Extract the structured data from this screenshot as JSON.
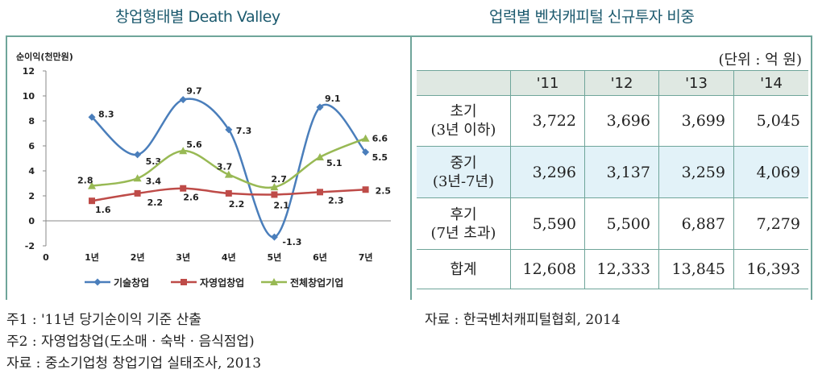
{
  "left_title": "창업형태별 Death Valley",
  "right_title": "업력별 벤처캐피털 신규투자 비중",
  "chart_data": {
    "type": "line",
    "title": "창업형태별 Death Valley",
    "ylabel": "순이익(천만원)",
    "xlabel": "",
    "origin_label": "0",
    "categories": [
      "1년",
      "2년",
      "3년",
      "4년",
      "5년",
      "6년",
      "7년"
    ],
    "ylim": [
      -2,
      12
    ],
    "yticks": [
      -2,
      0,
      2,
      4,
      6,
      8,
      10,
      12
    ],
    "grid": false,
    "legend_position": "bottom",
    "series": [
      {
        "name": "기술창업",
        "color": "#4a7ebb",
        "marker": "diamond",
        "values": [
          8.3,
          5.3,
          9.7,
          7.3,
          -1.3,
          9.1,
          5.5
        ]
      },
      {
        "name": "자영업창업",
        "color": "#be4b48",
        "marker": "square",
        "values": [
          1.6,
          2.2,
          2.6,
          2.2,
          2.1,
          2.3,
          2.5
        ]
      },
      {
        "name": "전체창업기업",
        "color": "#98b954",
        "marker": "triangle",
        "values": [
          2.8,
          3.4,
          5.6,
          3.7,
          2.7,
          5.1,
          6.6
        ]
      }
    ]
  },
  "table": {
    "unit": "(단위 : 억 원)",
    "headers": [
      "",
      "'11",
      "'12",
      "'13",
      "'14"
    ],
    "rows": [
      {
        "label": [
          "초기",
          "(3년 이하)"
        ],
        "values": [
          "3,722",
          "3,696",
          "3,699",
          "5,045"
        ]
      },
      {
        "label": [
          "중기",
          "(3년-7년)"
        ],
        "values": [
          "3,296",
          "3,137",
          "3,259",
          "4,069"
        ]
      },
      {
        "label": [
          "후기",
          "(7년 초과)"
        ],
        "values": [
          "5,590",
          "5,500",
          "6,887",
          "7,279"
        ]
      },
      {
        "label": [
          "합계"
        ],
        "values": [
          "12,608",
          "12,333",
          "13,845",
          "16,393"
        ]
      }
    ]
  },
  "notes_left": [
    "주1 : '11년 당기순이익 기준 산출",
    "주2 : 자영업창업(도소매 · 숙박 · 음식점업)",
    "자료 : 중소기업청 창업기업 실태조사, 2013"
  ],
  "notes_right": [
    "자료 : 한국벤처캐피털협회, 2014"
  ]
}
